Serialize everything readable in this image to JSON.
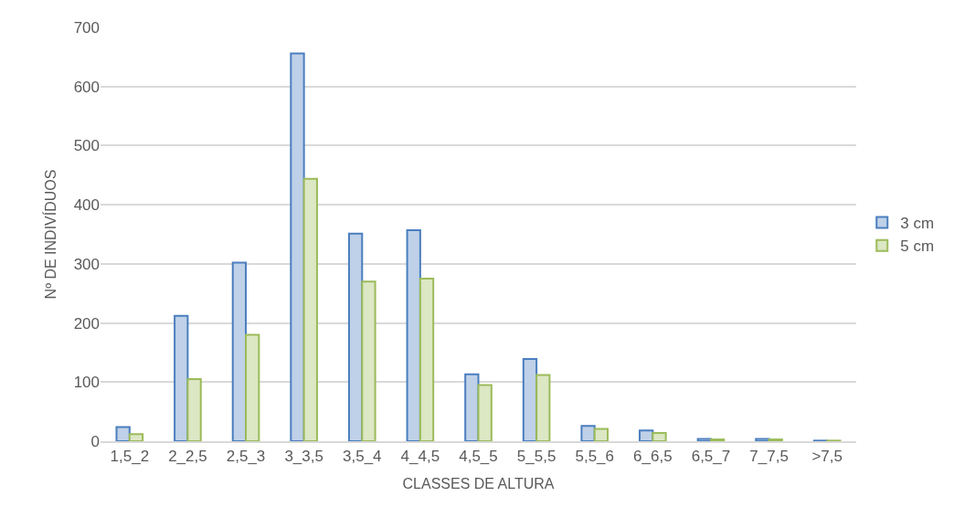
{
  "chart_data": {
    "type": "bar",
    "xlabel": "CLASSES DE ALTURA",
    "ylabel": "Nº DE INDIVÍDUOS",
    "categories": [
      "1,5_2",
      "2_2,5",
      "2,5_3",
      "3_3,5",
      "3,5_4",
      "4_4,5",
      "4,5_5",
      "5_5,5",
      "5,5_6",
      "6_6,5",
      "6,5_7",
      "7_7,5",
      ">7,5"
    ],
    "series": [
      {
        "name": "3 cm",
        "color": "#4a7ebf",
        "values": [
          24,
          212,
          302,
          656,
          351,
          357,
          113,
          139,
          26,
          18,
          4,
          4,
          1
        ]
      },
      {
        "name": "5 cm",
        "color": "#9bbb59",
        "values": [
          12,
          105,
          180,
          444,
          270,
          275,
          95,
          112,
          21,
          14,
          3,
          3,
          1
        ]
      }
    ],
    "ylim": [
      0,
      700
    ],
    "yticks": [
      0,
      100,
      200,
      300,
      400,
      500,
      600,
      700
    ],
    "grid": "y",
    "legend": "right"
  }
}
